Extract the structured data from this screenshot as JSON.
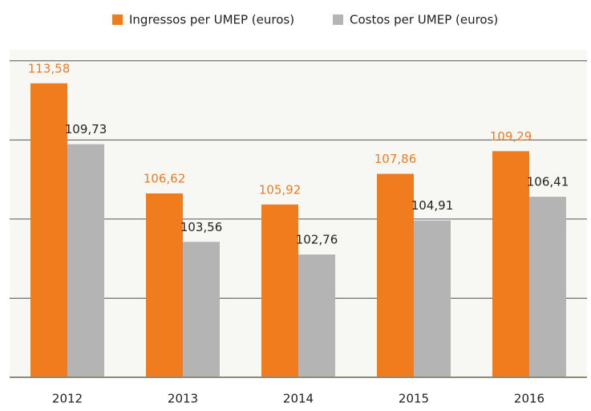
{
  "chart_data": {
    "type": "bar",
    "categories": [
      "2012",
      "2013",
      "2014",
      "2015",
      "2016"
    ],
    "series": [
      {
        "name": "Ingressos per UMEP (euros)",
        "color": "#f07c1e",
        "values": [
          113.58,
          106.62,
          105.92,
          107.86,
          109.29
        ],
        "value_labels": [
          "113,58",
          "106,62",
          "105,92",
          "107,86",
          "109,29"
        ]
      },
      {
        "name": "Costos per UMEP (euros)",
        "color": "#b4b4b4",
        "values": [
          109.73,
          103.56,
          102.76,
          104.91,
          106.41
        ],
        "value_labels": [
          "109,73",
          "103,56",
          "102,76",
          "104,91",
          "106,41"
        ]
      }
    ],
    "ylim": [
      95,
      115.7
    ],
    "yticks": [
      100,
      105,
      110,
      115
    ],
    "grid": true
  }
}
